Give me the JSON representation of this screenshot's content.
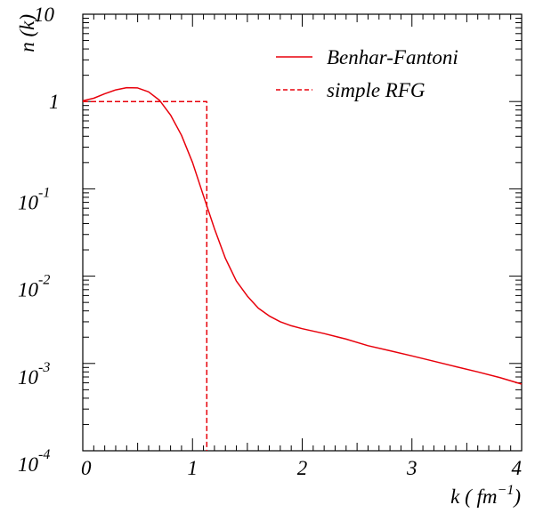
{
  "chart_data": {
    "type": "line",
    "title": "",
    "xlabel": "k ( fm",
    "xlabel_exponent": "−1",
    "xlabel_close": ")",
    "ylabel": "n (k)",
    "xlim": [
      0,
      4
    ],
    "ylim": [
      0.0001,
      10
    ],
    "yscale": "log",
    "x_ticks": [
      {
        "value": 0,
        "label": "0"
      },
      {
        "value": 1,
        "label": "1"
      },
      {
        "value": 2,
        "label": "2"
      },
      {
        "value": 3,
        "label": "3"
      },
      {
        "value": 4,
        "label": "4"
      }
    ],
    "y_ticks": [
      {
        "value": 10,
        "base": "10",
        "exp": ""
      },
      {
        "value": 1,
        "base": "1",
        "exp": ""
      },
      {
        "value": 0.1,
        "base": "10",
        "exp": "-1"
      },
      {
        "value": 0.01,
        "base": "10",
        "exp": "-2"
      },
      {
        "value": 0.001,
        "base": "10",
        "exp": "-3"
      },
      {
        "value": 0.0001,
        "base": "10",
        "exp": "-4"
      }
    ],
    "grid": false,
    "legend_position": "top-right",
    "series": [
      {
        "name": "Benhar-Fantoni",
        "style": "solid",
        "color": "#e8000b",
        "x": [
          0,
          0.1,
          0.2,
          0.3,
          0.4,
          0.5,
          0.6,
          0.7,
          0.8,
          0.9,
          1.0,
          1.1,
          1.2,
          1.3,
          1.4,
          1.5,
          1.6,
          1.7,
          1.8,
          1.9,
          2.0,
          2.2,
          2.4,
          2.6,
          2.8,
          3.0,
          3.2,
          3.4,
          3.6,
          3.8,
          4.0
        ],
        "y": [
          1.02,
          1.09,
          1.23,
          1.36,
          1.44,
          1.43,
          1.29,
          1.03,
          0.7,
          0.41,
          0.2,
          0.083,
          0.035,
          0.016,
          0.0088,
          0.0059,
          0.0043,
          0.0035,
          0.003,
          0.0027,
          0.0025,
          0.0022,
          0.0019,
          0.0016,
          0.0014,
          0.00122,
          0.00106,
          0.00092,
          0.0008,
          0.00069,
          0.00058
        ]
      },
      {
        "name": "simple RFG",
        "style": "dashed",
        "color": "#e8000b",
        "x": [
          0,
          1.13,
          1.13
        ],
        "y": [
          1.0,
          1.0,
          0.0001
        ]
      }
    ]
  }
}
